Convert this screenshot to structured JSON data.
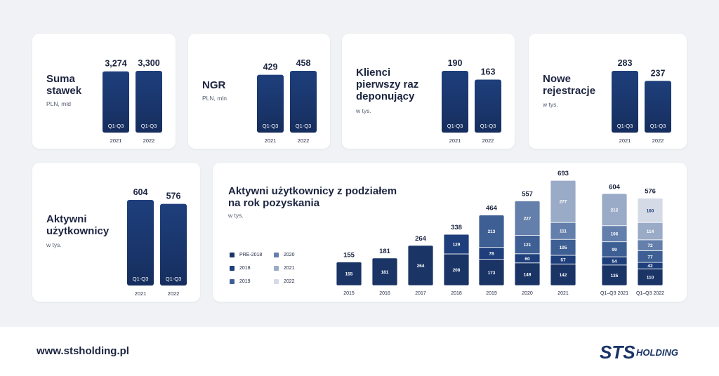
{
  "colors": {
    "bar_dark": "#1e3f7c",
    "bar_dark_bottom": "#162e5e",
    "pre2018": "#1a3466",
    "y2018": "#1e3f7c",
    "y2019": "#3e5f94",
    "y2020": "#647fab",
    "y2021": "#9aabc7",
    "y2022": "#d5dbe6"
  },
  "chart_data": [
    {
      "type": "bar",
      "title": "Suma\nstawek",
      "subtitle": "PLN, mld",
      "categories": [
        "2021",
        "2022"
      ],
      "bar_labels": [
        "Q1-Q3",
        "Q1-Q3"
      ],
      "value_labels": [
        "3,274",
        "3,300"
      ],
      "values": [
        3.274,
        3.3
      ]
    },
    {
      "type": "bar",
      "title": "NGR",
      "subtitle": "PLN, mln",
      "categories": [
        "2021",
        "2022"
      ],
      "bar_labels": [
        "Q1-Q3",
        "Q1-Q3"
      ],
      "value_labels": [
        "429",
        "458"
      ],
      "values": [
        429,
        458
      ]
    },
    {
      "type": "bar",
      "title": "Klienci\npierwszy raz\ndeponujący",
      "subtitle": "w tys.",
      "categories": [
        "2021",
        "2022"
      ],
      "bar_labels": [
        "Q1-Q3",
        "Q1-Q3"
      ],
      "value_labels": [
        "190",
        "163"
      ],
      "values": [
        190,
        163
      ]
    },
    {
      "type": "bar",
      "title": "Nowe\nrejestracje",
      "subtitle": "w tys.",
      "categories": [
        "2021",
        "2022"
      ],
      "bar_labels": [
        "Q1-Q3",
        "Q1-Q3"
      ],
      "value_labels": [
        "283",
        "237"
      ],
      "values": [
        283,
        237
      ]
    },
    {
      "type": "bar",
      "title": "Aktywni\nużytkownicy",
      "subtitle": "w tys.",
      "categories": [
        "2021",
        "2022"
      ],
      "bar_labels": [
        "Q1-Q3",
        "Q1-Q3"
      ],
      "value_labels": [
        "604",
        "576"
      ],
      "values": [
        604,
        576
      ]
    },
    {
      "type": "bar",
      "stacked": true,
      "title": "Aktywni użytkownicy z podziałem\nna rok pozyskania",
      "subtitle": "w tys.",
      "categories": [
        "2015",
        "2016",
        "2017",
        "2018",
        "2019",
        "2020",
        "2021",
        "Q1–Q3 2021",
        "Q1–Q3 2022"
      ],
      "totals": [
        155,
        181,
        264,
        338,
        464,
        557,
        693,
        604,
        576
      ],
      "series": [
        {
          "name": "PRE-2018",
          "values": [
            155,
            181,
            264,
            208,
            173,
            149,
            142,
            135,
            110
          ]
        },
        {
          "name": "2018",
          "values": [
            null,
            null,
            null,
            129,
            78,
            60,
            57,
            54,
            42
          ]
        },
        {
          "name": "2019",
          "values": [
            null,
            null,
            null,
            null,
            213,
            121,
            105,
            99,
            77
          ]
        },
        {
          "name": "2020",
          "values": [
            null,
            null,
            null,
            null,
            null,
            227,
            111,
            106,
            72
          ]
        },
        {
          "name": "2021",
          "values": [
            null,
            null,
            null,
            null,
            null,
            null,
            277,
            212,
            114
          ]
        },
        {
          "name": "2022",
          "values": [
            null,
            null,
            null,
            null,
            null,
            null,
            null,
            null,
            160
          ]
        }
      ],
      "legend_placement": "left"
    }
  ],
  "footer": {
    "url": "www.stsholding.pl",
    "logo_main": "STS",
    "logo_sub": "HOLDING"
  }
}
